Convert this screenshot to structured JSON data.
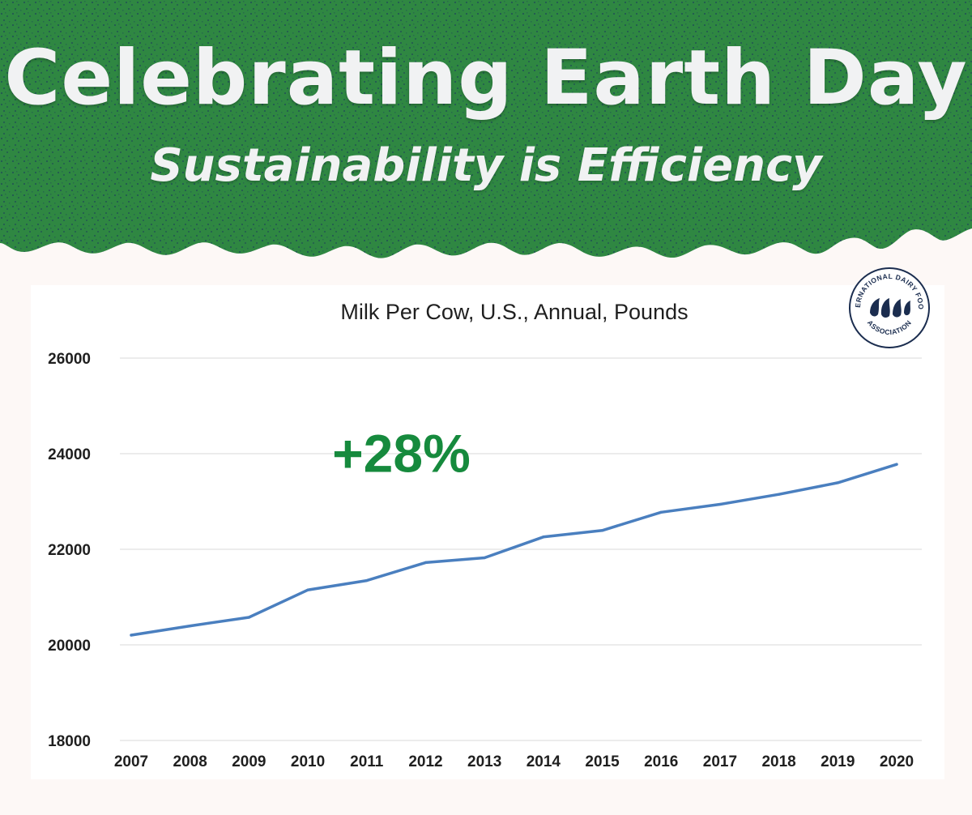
{
  "banner": {
    "title": "Celebrating Earth Day",
    "subtitle": "Sustainability is Efficiency",
    "background_color": "#2f8742",
    "speckle_color": "#1b3a5c"
  },
  "logo": {
    "top_text": "INTERNATIONAL DAIRY FOODS",
    "bottom_text": "ASSOCIATION",
    "color": "#1b2d4f"
  },
  "chart_data": {
    "type": "line",
    "title": "Milk Per Cow, U.S., Annual, Pounds",
    "xlabel": "",
    "ylabel": "",
    "x": [
      "2007",
      "2008",
      "2009",
      "2010",
      "2011",
      "2012",
      "2013",
      "2014",
      "2015",
      "2016",
      "2017",
      "2018",
      "2019",
      "2020"
    ],
    "series": [
      {
        "values": [
          20204,
          20396,
          20576,
          21149,
          21345,
          21722,
          21822,
          22258,
          22393,
          22775,
          22941,
          23149,
          23391,
          23777
        ],
        "color": "#4a7fbf"
      }
    ],
    "ylim": [
      18000,
      26000
    ],
    "yticks": [
      18000,
      20000,
      22000,
      24000,
      26000
    ],
    "grid": true,
    "legend": "none",
    "annotation": {
      "text": "+28%",
      "x": "2012",
      "y": 24300,
      "color": "#168a3d"
    }
  }
}
